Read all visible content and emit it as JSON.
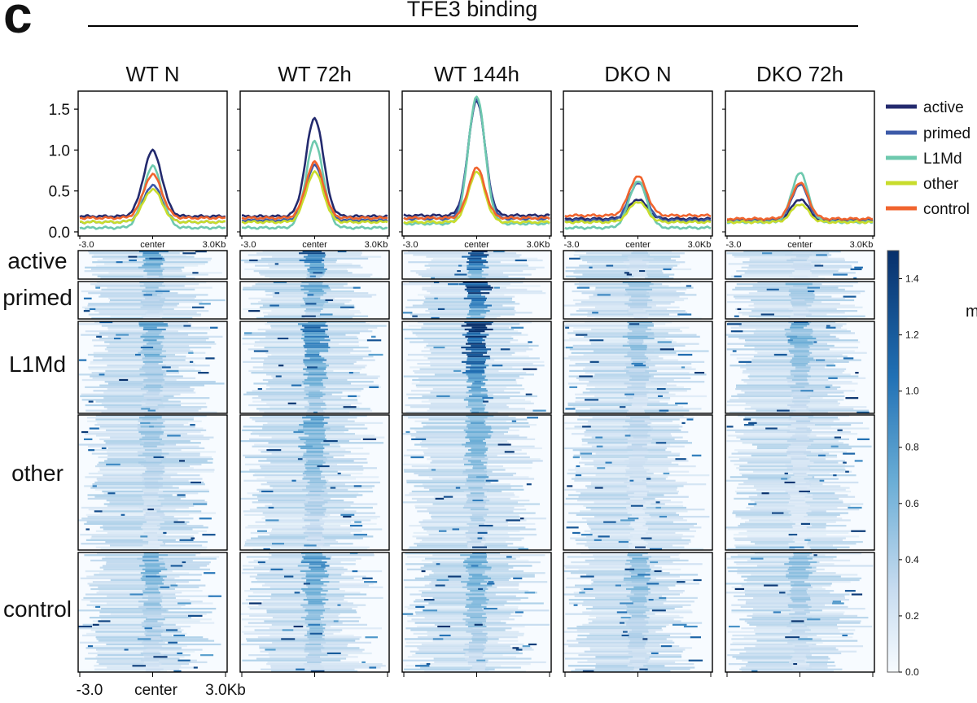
{
  "figure": {
    "panel_letter": "c",
    "title": "TFE3 binding",
    "colorbar_title_fragment": "m",
    "colorbar_ticks": [
      "0.0",
      "0.2",
      "0.4",
      "0.6",
      "0.8",
      "1.0",
      "1.2",
      "1.4"
    ],
    "colorbar_max": 1.5
  },
  "colors": {
    "active": "#232a6e",
    "primed": "#3c5aa8",
    "L1Md": "#6ec9ae",
    "other": "#c8dc2c",
    "control": "#f0642e",
    "heatmap_low": "#f7fbff",
    "heatmap_high": "#08306b"
  },
  "heatmap": {
    "row_labels": [
      "active",
      "primed",
      "L1Md",
      "other",
      "control"
    ],
    "x_ticks": [
      "-3.0",
      "center",
      "3.0Kb"
    ]
  },
  "chart_data": {
    "type": "line",
    "title": "TFE3 binding",
    "xlabel": "",
    "ylabel": "",
    "x_ticks": [
      "-3.0",
      "center",
      "3.0Kb"
    ],
    "x_range": [
      -3.0,
      3.0
    ],
    "ylim": [
      -0.05,
      1.72
    ],
    "y_ticks": [
      "0.0",
      "0.5",
      "1.0",
      "1.5"
    ],
    "legend": [
      "active",
      "primed",
      "L1Md",
      "other",
      "control"
    ],
    "legend_position": "right",
    "panels": [
      {
        "name": "WT N",
        "series": [
          {
            "name": "active",
            "baseline": 0.19,
            "peak": 0.99,
            "width": 0.38
          },
          {
            "name": "primed",
            "baseline": 0.12,
            "peak": 0.57,
            "width": 0.38
          },
          {
            "name": "L1Md",
            "baseline": 0.05,
            "peak": 0.8,
            "width": 0.38
          },
          {
            "name": "other",
            "baseline": 0.12,
            "peak": 0.52,
            "width": 0.38
          },
          {
            "name": "control",
            "baseline": 0.17,
            "peak": 0.7,
            "width": 0.38
          }
        ]
      },
      {
        "name": "WT 72h",
        "series": [
          {
            "name": "active",
            "baseline": 0.19,
            "peak": 1.39,
            "width": 0.36
          },
          {
            "name": "primed",
            "baseline": 0.14,
            "peak": 0.81,
            "width": 0.36
          },
          {
            "name": "L1Md",
            "baseline": 0.05,
            "peak": 1.1,
            "width": 0.36
          },
          {
            "name": "other",
            "baseline": 0.12,
            "peak": 0.73,
            "width": 0.36
          },
          {
            "name": "control",
            "baseline": 0.17,
            "peak": 0.85,
            "width": 0.36
          }
        ]
      },
      {
        "name": "WT 144h",
        "series": [
          {
            "name": "active",
            "baseline": 0.2,
            "peak": 1.61,
            "width": 0.34
          },
          {
            "name": "primed",
            "baseline": 0.16,
            "peak": 1.63,
            "width": 0.34
          },
          {
            "name": "L1Md",
            "baseline": 0.1,
            "peak": 1.66,
            "width": 0.34
          },
          {
            "name": "other",
            "baseline": 0.12,
            "peak": 0.73,
            "width": 0.34
          },
          {
            "name": "control",
            "baseline": 0.17,
            "peak": 0.78,
            "width": 0.34
          }
        ]
      },
      {
        "name": "DKO N",
        "series": [
          {
            "name": "active",
            "baseline": 0.16,
            "peak": 0.4,
            "width": 0.36
          },
          {
            "name": "primed",
            "baseline": 0.14,
            "peak": 0.6,
            "width": 0.36
          },
          {
            "name": "L1Md",
            "baseline": 0.05,
            "peak": 0.62,
            "width": 0.36
          },
          {
            "name": "other",
            "baseline": 0.12,
            "peak": 0.37,
            "width": 0.36
          },
          {
            "name": "control",
            "baseline": 0.2,
            "peak": 0.68,
            "width": 0.36
          }
        ]
      },
      {
        "name": "DKO 72h",
        "series": [
          {
            "name": "active",
            "baseline": 0.14,
            "peak": 0.4,
            "width": 0.34
          },
          {
            "name": "primed",
            "baseline": 0.13,
            "peak": 0.58,
            "width": 0.34
          },
          {
            "name": "L1Md",
            "baseline": 0.12,
            "peak": 0.72,
            "width": 0.34
          },
          {
            "name": "other",
            "baseline": 0.12,
            "peak": 0.34,
            "width": 0.34
          },
          {
            "name": "control",
            "baseline": 0.16,
            "peak": 0.6,
            "width": 0.34
          }
        ]
      }
    ]
  }
}
